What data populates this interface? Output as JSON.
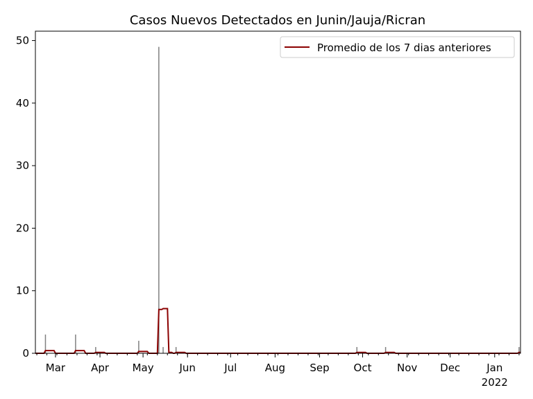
{
  "chart_data": {
    "type": "bar",
    "title": "Casos Nuevos Detectados en Junin/Jauja/Ricran",
    "xlabel": "",
    "ylabel": "",
    "xlim": [
      "2021-02-15",
      "2022-01-19"
    ],
    "ylim": [
      0,
      51.5
    ],
    "yticks": [
      0,
      10,
      20,
      30,
      40,
      50
    ],
    "xticks": [
      {
        "date": "2021-03-01",
        "label": "Mar"
      },
      {
        "date": "2021-04-01",
        "label": "Apr"
      },
      {
        "date": "2021-05-01",
        "label": "May"
      },
      {
        "date": "2021-06-01",
        "label": "Jun"
      },
      {
        "date": "2021-07-01",
        "label": "Jul"
      },
      {
        "date": "2021-08-01",
        "label": "Aug"
      },
      {
        "date": "2021-09-01",
        "label": "Sep"
      },
      {
        "date": "2021-10-01",
        "label": "Oct"
      },
      {
        "date": "2021-11-01",
        "label": "Nov"
      },
      {
        "date": "2021-12-01",
        "label": "Dec"
      },
      {
        "date": "2022-01-01",
        "label": "Jan",
        "sublabel": "2022"
      }
    ],
    "daily_cases": [
      {
        "date": "2021-02-22",
        "value": 3
      },
      {
        "date": "2021-03-15",
        "value": 3
      },
      {
        "date": "2021-03-29",
        "value": 1
      },
      {
        "date": "2021-04-28",
        "value": 2
      },
      {
        "date": "2021-05-12",
        "value": 49
      },
      {
        "date": "2021-05-15",
        "value": 1
      },
      {
        "date": "2021-05-24",
        "value": 1
      },
      {
        "date": "2021-09-27",
        "value": 1
      },
      {
        "date": "2021-10-17",
        "value": 1
      },
      {
        "date": "2022-01-18",
        "value": 1
      }
    ],
    "series": [
      {
        "name": "Promedio de los 7 dias anteriores",
        "color": "#8b0000",
        "window_days": 7
      }
    ],
    "bar_color": "#808080",
    "legend": "top-right",
    "grid": false
  }
}
